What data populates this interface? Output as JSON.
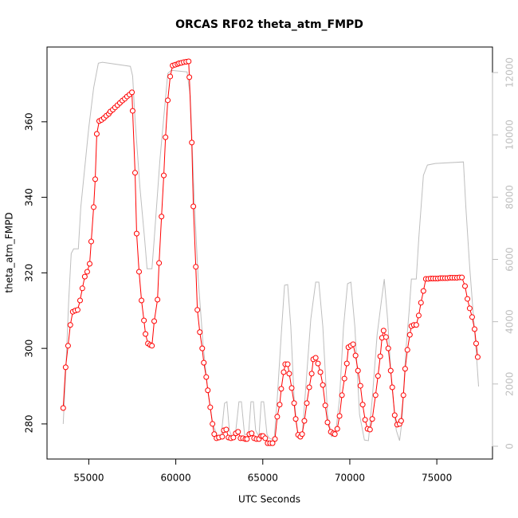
{
  "chart_data": {
    "type": "line",
    "title": "ORCAS RF02 theta_atm_FMPD",
    "xlabel": "UTC Seconds",
    "ylabel": "theta_atm_FMPD",
    "xlim": [
      52600,
      78200
    ],
    "xticks": [
      55000,
      60000,
      65000,
      70000,
      75000
    ],
    "ylim": [
      270.7,
      379.8
    ],
    "yticks": [
      280,
      300,
      320,
      340,
      360
    ],
    "y2lim": [
      -410,
      12820
    ],
    "y2ticks": [
      0,
      2000,
      4000,
      6000,
      8000,
      10000,
      12000
    ],
    "y2color": "#bebebe",
    "series": [
      {
        "color": "#ff0000",
        "markers": true,
        "x": [
          53530,
          53670,
          53810,
          53940,
          54080,
          54220,
          54360,
          54500,
          54630,
          54770,
          54910,
          55050,
          55140,
          55280,
          55370,
          55460,
          55600,
          55730,
          55870,
          56010,
          56150,
          56240,
          56380,
          56510,
          56650,
          56790,
          56930,
          57070,
          57200,
          57340,
          57480,
          57520,
          57660,
          57750,
          57890,
          58030,
          58170,
          58260,
          58400,
          58530,
          58630,
          58760,
          58950,
          59040,
          59180,
          59310,
          59410,
          59540,
          59680,
          59820,
          59960,
          60100,
          60190,
          60320,
          60460,
          60600,
          60740,
          60780,
          60920,
          61010,
          61150,
          61240,
          61380,
          61520,
          61610,
          61750,
          61840,
          61980,
          62110,
          62210,
          62340,
          62480,
          62670,
          62760,
          62900,
          63030,
          63170,
          63310,
          63450,
          63580,
          63720,
          63860,
          64000,
          64090,
          64230,
          64360,
          64500,
          64640,
          64780,
          64910,
          65010,
          65140,
          65280,
          65420,
          65560,
          65700,
          65830,
          65970,
          66060,
          66200,
          66290,
          66430,
          66520,
          66660,
          66800,
          66890,
          67030,
          67160,
          67260,
          67390,
          67530,
          67670,
          67810,
          67900,
          68040,
          68170,
          68310,
          68450,
          68590,
          68720,
          68910,
          69050,
          69140,
          69280,
          69410,
          69550,
          69690,
          69830,
          69920,
          70060,
          70190,
          70330,
          70470,
          70610,
          70740,
          70880,
          71020,
          71160,
          71290,
          71480,
          71620,
          71750,
          71850,
          71940,
          72080,
          72210,
          72350,
          72440,
          72580,
          72720,
          72860,
          72950,
          73080,
          73180,
          73310,
          73450,
          73540,
          73680,
          73820,
          73960,
          74090,
          74230,
          74370,
          74510,
          74650,
          74780,
          74920,
          75060,
          75200,
          75330,
          75470,
          75610,
          75750,
          75880,
          76020,
          76160,
          76300,
          76440,
          76620,
          76760,
          76890,
          77030,
          77170,
          77260,
          77350
        ],
        "values": [
          284.2,
          295,
          300.7,
          306.2,
          309.7,
          310,
          310.2,
          312.7,
          315.9,
          319,
          320.3,
          322.4,
          328.3,
          337.4,
          344.8,
          356.8,
          360.2,
          360.5,
          361,
          361.6,
          362.1,
          362.7,
          363.2,
          363.8,
          364.4,
          365,
          365.6,
          366.1,
          366.7,
          367.2,
          367.8,
          362.9,
          346.5,
          330.4,
          320.3,
          312.7,
          307.4,
          303.8,
          301.3,
          300.9,
          300.7,
          307.2,
          312.9,
          322.6,
          334.9,
          345.8,
          355.9,
          365.7,
          372,
          374.9,
          375.1,
          375.3,
          375.5,
          375.6,
          375.8,
          375.9,
          376,
          371.8,
          354.5,
          337.6,
          321.6,
          310.2,
          304.3,
          300,
          296.2,
          292.4,
          288.9,
          284.4,
          280,
          277.3,
          276.2,
          276.4,
          276.6,
          278.3,
          278.5,
          276.4,
          276.2,
          276.4,
          277.5,
          277.9,
          276.2,
          276.2,
          276,
          276,
          277.3,
          277.5,
          276.2,
          276,
          276,
          276.8,
          276.8,
          276.2,
          274.9,
          274.9,
          274.9,
          276,
          281.9,
          285.1,
          289.3,
          293.7,
          295.8,
          295.8,
          293.3,
          289.5,
          285.5,
          281.3,
          277.1,
          276.6,
          277.3,
          280.8,
          285.5,
          289.7,
          293.3,
          297.1,
          297.5,
          296,
          293.7,
          290.3,
          284.9,
          280.4,
          277.9,
          277.5,
          277.3,
          278.7,
          282.1,
          287.6,
          292,
          296,
          300.3,
          300.7,
          301.1,
          298.1,
          294.1,
          290.1,
          285.1,
          281.1,
          278.7,
          278.5,
          281.3,
          287.6,
          292.7,
          297.9,
          302.8,
          304.7,
          303,
          300,
          294.1,
          289.7,
          282.3,
          279.8,
          280,
          280.8,
          287.6,
          294.6,
          299.6,
          303.6,
          305.9,
          306.2,
          306.2,
          308.7,
          312.1,
          315.2,
          318.4,
          318.4,
          318.5,
          318.5,
          318.5,
          318.5,
          318.6,
          318.6,
          318.6,
          318.6,
          318.7,
          318.7,
          318.7,
          318.7,
          318.8,
          318.8,
          316.5,
          313.1,
          310.6,
          308.3,
          305.1,
          301.3,
          297.7
        ]
      },
      {
        "color": "#bebebe",
        "axis": "y2",
        "x": [
          53530,
          53670,
          53850,
          53990,
          54130,
          54400,
          54540,
          54770,
          55000,
          55280,
          55550,
          55780,
          57390,
          57520,
          57660,
          57940,
          58210,
          58350,
          58630,
          58760,
          59090,
          59360,
          59540,
          59730,
          60650,
          60830,
          61060,
          61290,
          61560,
          61840,
          62110,
          62390,
          62620,
          62800,
          62940,
          63080,
          63260,
          63450,
          63630,
          63770,
          63950,
          64180,
          64320,
          64460,
          64590,
          64780,
          64910,
          65050,
          65240,
          65370,
          65650,
          65830,
          66060,
          66250,
          66430,
          66610,
          66800,
          67030,
          67260,
          67490,
          67760,
          68040,
          68220,
          68450,
          68720,
          68950,
          69180,
          69410,
          69640,
          69870,
          70060,
          70290,
          70560,
          70840,
          71070,
          71290,
          71570,
          71800,
          71980,
          72170,
          72400,
          72670,
          72860,
          72990,
          73220,
          73410,
          73540,
          73820,
          73960,
          74230,
          74460,
          74920,
          76530,
          76670,
          76890,
          77080,
          77260,
          77400
        ],
        "values": [
          716,
          2300,
          4730,
          6190,
          6340,
          6340,
          7670,
          8950,
          10230,
          11510,
          12300,
          12330,
          12200,
          11890,
          10490,
          8310,
          6650,
          5700,
          5700,
          6650,
          9210,
          10870,
          11970,
          12070,
          12020,
          11250,
          7930,
          5370,
          3320,
          1790,
          770,
          310,
          380,
          1380,
          1430,
          510,
          260,
          510,
          1430,
          1430,
          380,
          380,
          1430,
          1430,
          510,
          310,
          1430,
          1430,
          380,
          260,
          200,
          1530,
          3580,
          5170,
          5190,
          3840,
          1530,
          260,
          310,
          2050,
          4090,
          5270,
          5270,
          3840,
          1020,
          310,
          380,
          1530,
          3840,
          5220,
          5270,
          3840,
          1020,
          200,
          180,
          1530,
          3580,
          4600,
          5370,
          4090,
          2050,
          510,
          180,
          770,
          3070,
          4350,
          5370,
          5370,
          6650,
          8700,
          9030,
          9080,
          9130,
          7670,
          5750,
          4350,
          3070,
          1920
        ]
      }
    ]
  }
}
